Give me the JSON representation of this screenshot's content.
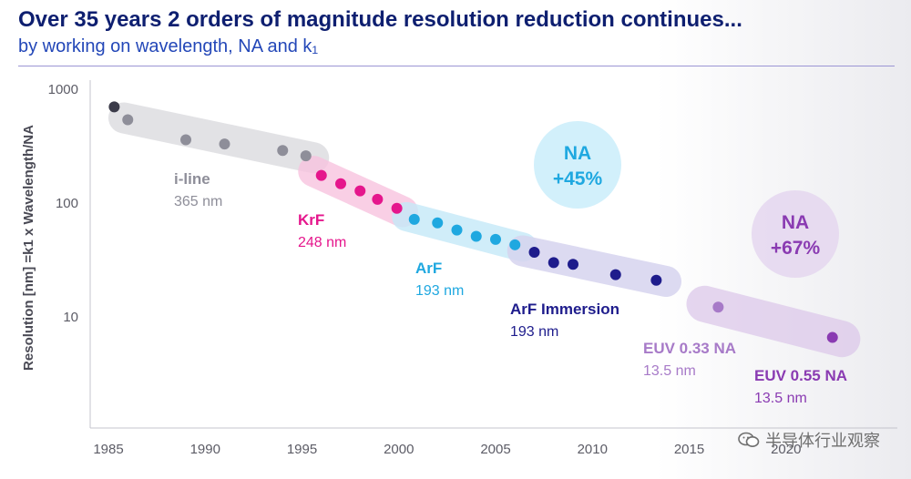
{
  "title": "Over 35 years 2 orders of magnitude resolution reduction continues...",
  "subtitle": "by working on wavelength, NA and k₁",
  "watermark": "半导体行业观察",
  "colors": {
    "title": "#0e1f70",
    "subtitle": "#2347b8",
    "i-line": "#8e8e99",
    "krf": "#e5168c",
    "arf": "#1fa8e0",
    "arf-immersion": "#1e1c8c",
    "euv033": "#a77ac8",
    "euv055": "#8a3bb2"
  },
  "chart_data": {
    "type": "scatter",
    "xlabel": "",
    "ylabel": "Resolution [nm] =k1 x Wavelength/NA",
    "xlim": [
      1985,
      2023
    ],
    "ylim": [
      1,
      1000
    ],
    "yscale": "log",
    "xticks": [
      1985,
      1990,
      1995,
      2000,
      2005,
      2010,
      2015,
      2020
    ],
    "yticks": [
      10,
      100,
      1000
    ],
    "x_tick_labels": [
      "1985",
      "1990",
      "1995",
      "2000",
      "2005",
      "2010",
      "2015",
      "2020"
    ],
    "y_tick_labels": [
      "10",
      "100",
      "1000"
    ],
    "grid": false,
    "first_point": {
      "x": 1985.3,
      "y": 700,
      "color": "#3c3c4a"
    },
    "series": [
      {
        "key": "i-line",
        "name": "i-line",
        "wavelength": "365 nm",
        "x": [
          1986.0,
          1989.0,
          1991.0,
          1994.0,
          1995.2
        ],
        "y": [
          540,
          360,
          330,
          290,
          260
        ]
      },
      {
        "key": "krf",
        "name": "KrF",
        "wavelength": "248 nm",
        "x": [
          1996.0,
          1997.0,
          1998.0,
          1998.9,
          1999.9
        ],
        "y": [
          175,
          148,
          128,
          108,
          90
        ]
      },
      {
        "key": "arf",
        "name": "ArF",
        "wavelength": "193 nm",
        "x": [
          2000.8,
          2002.0,
          2003.0,
          2004.0,
          2005.0,
          2006.0
        ],
        "y": [
          72,
          67,
          58,
          51,
          48,
          43
        ]
      },
      {
        "key": "arf-immersion",
        "name": "ArF Immersion",
        "wavelength": "193 nm",
        "x": [
          2007.0,
          2008.0,
          2009.0,
          2011.2,
          2013.3
        ],
        "y": [
          37,
          30,
          29,
          23.5,
          21
        ]
      },
      {
        "key": "euv033",
        "name": "EUV 0.33 NA",
        "wavelength": "13.5 nm",
        "x": [
          2016.5
        ],
        "y": [
          12.2
        ]
      },
      {
        "key": "euv055",
        "name": "EUV 0.55 NA",
        "wavelength": "13.5 nm",
        "x": [
          2022.4
        ],
        "y": [
          6.6
        ]
      }
    ],
    "annotations": [
      {
        "key": "na45",
        "line1": "NA",
        "line2": "+45%",
        "color": "#1fa8e0"
      },
      {
        "key": "na67",
        "line1": "NA",
        "line2": "+67%",
        "color": "#8a3bb2"
      }
    ]
  }
}
